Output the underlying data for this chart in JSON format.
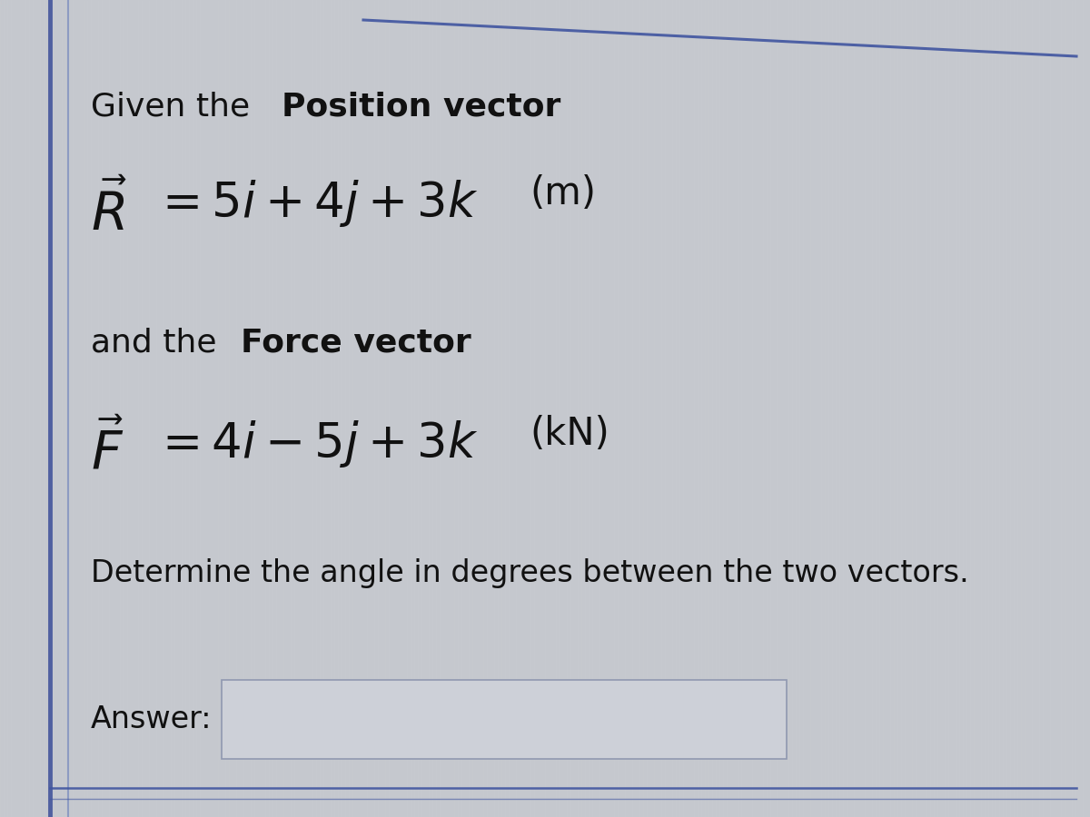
{
  "bg_color": "#c5c8ce",
  "text_color": "#111111",
  "left_bar_color1": "#5060a0",
  "left_bar_color2": "#8090c0",
  "top_line_color": "#4055a0",
  "answer_box_color": "#cdd0d8",
  "answer_box_border": "#9098b0",
  "line1_plain": "Given the ",
  "line1_bold": "Position vector",
  "line2_vec": "$\\vec{R}$",
  "line2_eq": "$= 5i + 4j + 3k$",
  "line2_unit": " (m)",
  "line3_plain": "and the ",
  "line3_bold": "Force vector",
  "line4_vec": "$\\vec{F}$",
  "line4_eq": "$= 4i - 5j + 3k$",
  "line4_unit": " (kN)",
  "line5": "Determine the angle in degrees between the two vectors.",
  "answer_label": "Answer:"
}
